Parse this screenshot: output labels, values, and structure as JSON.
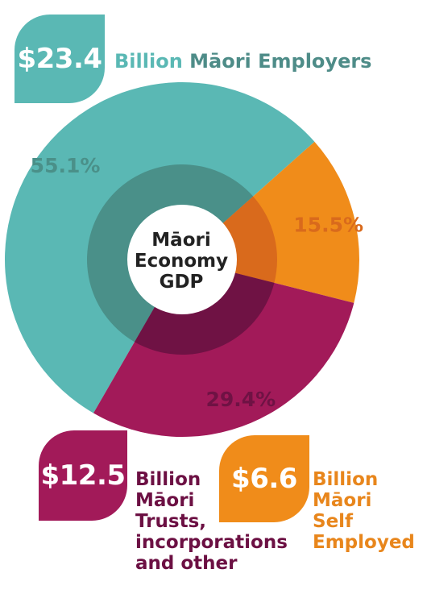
{
  "colors": {
    "teal": "#5ab8b4",
    "teal_dark": "#4a9089",
    "magenta": "#a21a59",
    "magenta_dark": "#6f1244",
    "orange": "#f08c1a",
    "orange_dark": "#d96a1c",
    "teal_text": "#4e8c88",
    "magenta_text": "#6c1043",
    "orange_text": "#e8861c"
  },
  "center_label": [
    "Māori",
    "Economy",
    "GDP"
  ],
  "chart_data": {
    "type": "pie",
    "title": "",
    "slices": [
      {
        "label": "Māori Employers",
        "value": 55.1,
        "amount": "$23.4",
        "unit": "Billion",
        "percent_label": "55.1%",
        "color": "#5ab8b4"
      },
      {
        "label": "Māori Self Employed",
        "value": 15.5,
        "amount": "$6.6",
        "unit": "Billion",
        "percent_label": "15.5%",
        "color": "#f08c1a"
      },
      {
        "label": "Māori Trusts, incorporations and other",
        "value": 29.4,
        "amount": "$12.5",
        "unit": "Billion",
        "percent_label": "29.4%",
        "color": "#a21a59"
      }
    ]
  },
  "callouts": {
    "employers": {
      "amount": "$23.4",
      "unit": "Billion",
      "lines": [
        "Māori Employers"
      ]
    },
    "trusts": {
      "amount": "$12.5",
      "lines": [
        "Billion",
        "Māori",
        "Trusts,",
        "incorporations",
        "and other"
      ]
    },
    "self_employed": {
      "amount": "$6.6",
      "lines": [
        "Billion",
        "Māori",
        "Self",
        "Employed"
      ]
    }
  }
}
